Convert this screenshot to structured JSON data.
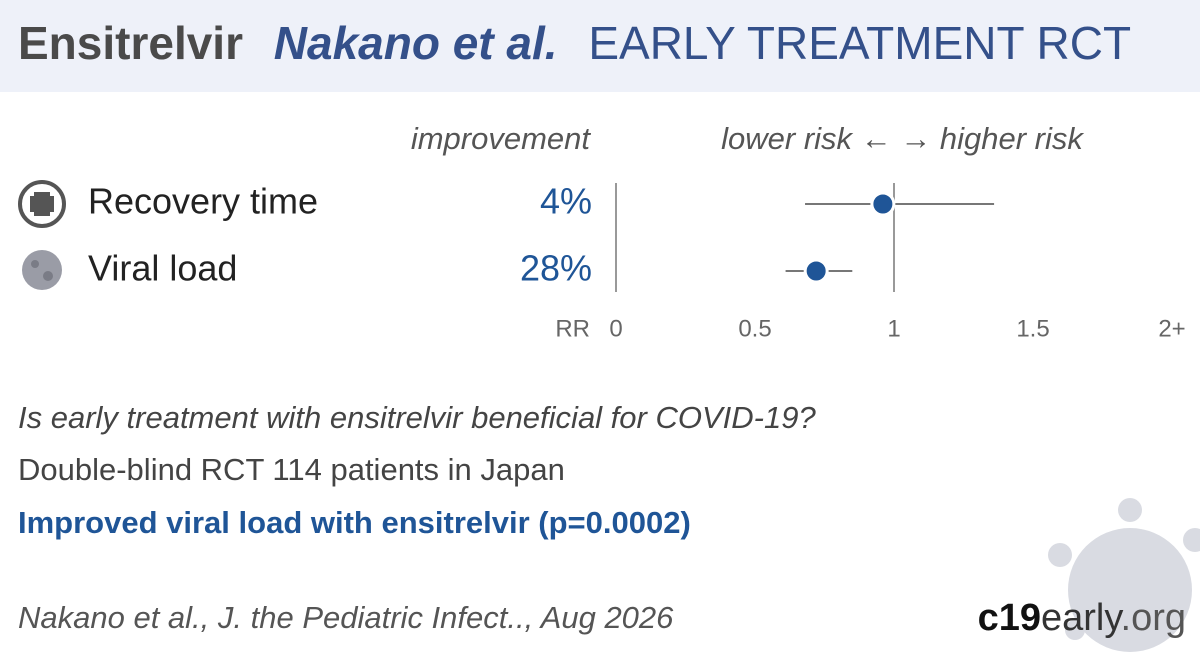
{
  "header": {
    "drug": "Ensitrelvir",
    "study": "Nakano et al.",
    "kind": "EARLY TREATMENT RCT"
  },
  "chart_data": {
    "type": "forest",
    "improvement_header": "improvement",
    "direction_header": "lower risk ← → higher risk",
    "x_label": "RR",
    "xlim": [
      0,
      2
    ],
    "xticks": [
      0,
      0.5,
      1,
      1.5,
      {
        "value": 2,
        "label": "2+"
      }
    ],
    "ref_line": 1,
    "color": "#1f5597",
    "rows": [
      {
        "name": "Recovery time",
        "improvement": "4%",
        "rr": 0.96,
        "ci_low": 0.68,
        "ci_high": 1.36
      },
      {
        "name": "Viral load",
        "improvement": "28%",
        "rr": 0.72,
        "ci_low": 0.61,
        "ci_high": 0.85
      }
    ]
  },
  "summary": {
    "question": "Is early treatment with ensitrelvir beneficial for COVID-19?",
    "design": "Double-blind RCT 114 patients in Japan",
    "finding": "Improved viral load with ensitrelvir (p=0.0002)"
  },
  "footer": {
    "citation": "Nakano et al., J. the Pediatric Infect.., Aug 2026",
    "site_a": "c19",
    "site_b": "early",
    "site_c": ".org"
  }
}
